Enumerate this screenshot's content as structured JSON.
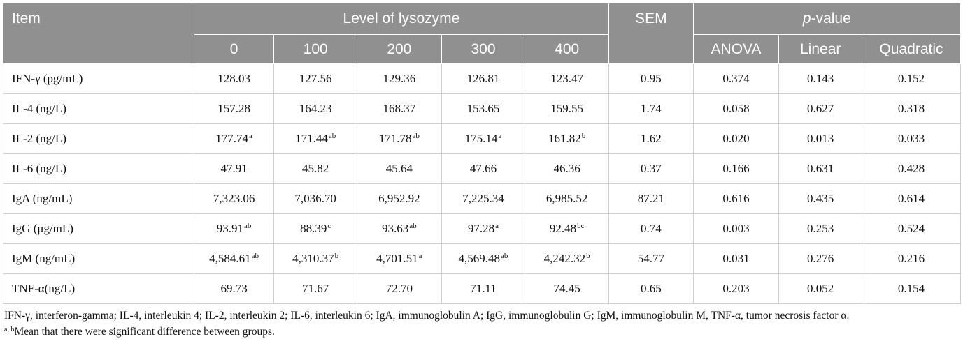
{
  "header": {
    "item": "Item",
    "level_group": "Level of lysozyme",
    "sem": "SEM",
    "p_prefix": "p",
    "p_suffix": "-value",
    "levels": [
      "0",
      "100",
      "200",
      "300",
      "400"
    ],
    "p_cols": [
      "ANOVA",
      "Linear",
      "Quadratic"
    ]
  },
  "rows": [
    {
      "item": "IFN-γ (pg/mL)",
      "vals": [
        [
          "128.03",
          ""
        ],
        [
          "127.56",
          ""
        ],
        [
          "129.36",
          ""
        ],
        [
          "126.81",
          ""
        ],
        [
          "123.47",
          ""
        ]
      ],
      "sem": "0.95",
      "p": [
        "0.374",
        "0.143",
        "0.152"
      ]
    },
    {
      "item": "IL-4 (ng/L)",
      "vals": [
        [
          "157.28",
          ""
        ],
        [
          "164.23",
          ""
        ],
        [
          "168.37",
          ""
        ],
        [
          "153.65",
          ""
        ],
        [
          "159.55",
          ""
        ]
      ],
      "sem": "1.74",
      "p": [
        "0.058",
        "0.627",
        "0.318"
      ]
    },
    {
      "item": "IL-2 (ng/L)",
      "vals": [
        [
          "177.74",
          "a"
        ],
        [
          "171.44",
          "ab"
        ],
        [
          "171.78",
          "ab"
        ],
        [
          "175.14",
          "a"
        ],
        [
          "161.82",
          "b"
        ]
      ],
      "sem": "1.62",
      "p": [
        "0.020",
        "0.013",
        "0.033"
      ]
    },
    {
      "item": "IL-6 (ng/L)",
      "vals": [
        [
          "47.91",
          ""
        ],
        [
          "45.82",
          ""
        ],
        [
          "45.64",
          ""
        ],
        [
          "47.66",
          ""
        ],
        [
          "46.36",
          ""
        ]
      ],
      "sem": "0.37",
      "p": [
        "0.166",
        "0.631",
        "0.428"
      ]
    },
    {
      "item": "IgA (ng/mL)",
      "vals": [
        [
          "7,323.06",
          ""
        ],
        [
          "7,036.70",
          ""
        ],
        [
          "6,952.92",
          ""
        ],
        [
          "7,225.34",
          ""
        ],
        [
          "6,985.52",
          ""
        ]
      ],
      "sem": "87.21",
      "p": [
        "0.616",
        "0.435",
        "0.614"
      ]
    },
    {
      "item": "IgG (μg/mL)",
      "vals": [
        [
          "93.91",
          "ab"
        ],
        [
          "88.39",
          "c"
        ],
        [
          "93.63",
          "ab"
        ],
        [
          "97.28",
          "a"
        ],
        [
          "92.48",
          "bc"
        ]
      ],
      "sem": "0.74",
      "p": [
        "0.003",
        "0.253",
        "0.524"
      ]
    },
    {
      "item": "IgM (ng/mL)",
      "vals": [
        [
          "4,584.61",
          "ab"
        ],
        [
          "4,310.37",
          "b"
        ],
        [
          "4,701.51",
          "a"
        ],
        [
          "4,569.48",
          "ab"
        ],
        [
          "4,242.32",
          "b"
        ]
      ],
      "sem": "54.77",
      "p": [
        "0.031",
        "0.276",
        "0.216"
      ]
    },
    {
      "item": "TNF-α(ng/L)",
      "vals": [
        [
          "69.73",
          ""
        ],
        [
          "71.67",
          ""
        ],
        [
          "72.70",
          ""
        ],
        [
          "71.11",
          ""
        ],
        [
          "74.45",
          ""
        ]
      ],
      "sem": "0.65",
      "p": [
        "0.203",
        "0.052",
        "0.154"
      ]
    }
  ],
  "footnotes": {
    "abbrev": "IFN-γ, interferon-gamma; IL-4, interleukin 4; IL-2, interleukin 2; IL-6, interleukin 6; IgA, immunoglobulin A; IgG, immunoglobulin G; IgM, immunoglobulin M, TNF-α, tumor necrosis factor α.",
    "sig_sup": "a, b",
    "sig_text": "Mean that there were significant difference between groups."
  }
}
